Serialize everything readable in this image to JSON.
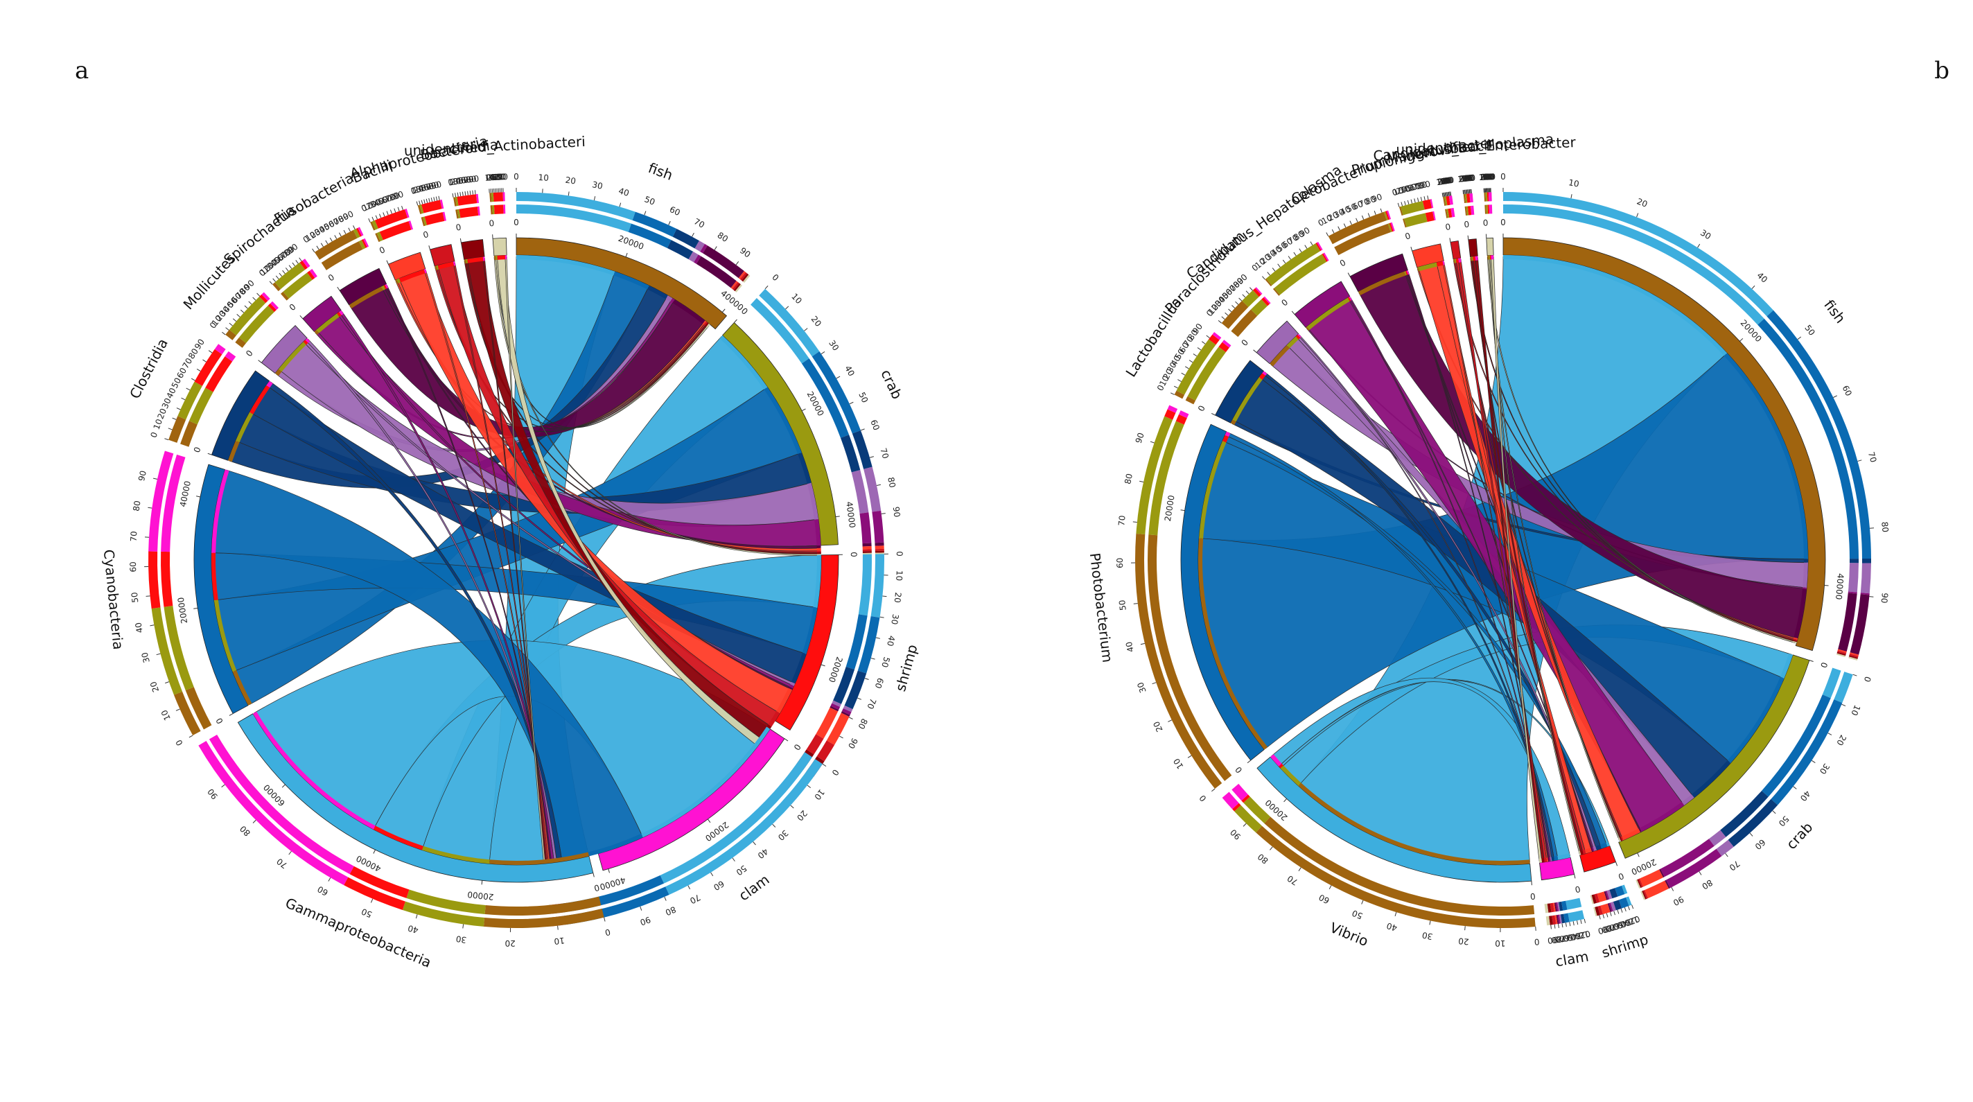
{
  "chart_data": [
    {
      "type": "chord",
      "panel_label": "a",
      "sample_order": [
        "fish",
        "crab",
        "shrimp",
        "clam"
      ],
      "samples": [
        {
          "name": "fish",
          "total": 41000,
          "color": "#a0640f"
        },
        {
          "name": "crab",
          "total": 45000,
          "color": "#9a9a10"
        },
        {
          "name": "shrimp",
          "total": 33000,
          "color": "#ff0d0d"
        },
        {
          "name": "clam",
          "total": 41000,
          "color": "#ff12d2"
        }
      ],
      "taxa": [
        {
          "name": "Gammaproteobacteria",
          "color": "#3daede",
          "values": [
            19000,
            13000,
            10000,
            32000
          ]
        },
        {
          "name": "Cyanobacteria",
          "color": "#0a6ab2",
          "values": [
            7000,
            14000,
            9000,
            16000
          ]
        },
        {
          "name": "Clostridia",
          "color": "#083b7a",
          "values": [
            4000,
            6000,
            6000,
            1000
          ]
        },
        {
          "name": "Mollicutes",
          "color": "#9d68b4",
          "values": [
            1000,
            7000,
            500,
            500
          ]
        },
        {
          "name": "Spirochaetia",
          "color": "#8b0e7a",
          "values": [
            500,
            5000,
            500,
            500
          ]
        },
        {
          "name": "Fusobacteria",
          "color": "#5a0045",
          "values": [
            7000,
            500,
            300,
            300
          ]
        },
        {
          "name": "Bacilli",
          "color": "#ff3c28",
          "values": [
            300,
            500,
            5000,
            300
          ]
        },
        {
          "name": "Alphaproteobacteria",
          "color": "#d2141e",
          "values": [
            300,
            300,
            3000,
            300
          ]
        },
        {
          "name": "Bacteroidia",
          "color": "#8b0008",
          "values": [
            300,
            300,
            3000,
            300
          ]
        },
        {
          "name": "unidentified_Actinobacteri",
          "color": "#d6d3aa",
          "values": [
            300,
            300,
            1500,
            300
          ]
        }
      ],
      "ticks_abs_step": 20000,
      "ticks_pct": [
        0,
        10,
        20,
        30,
        40,
        50,
        60,
        70,
        80,
        90
      ]
    },
    {
      "type": "chord",
      "panel_label": "b",
      "sample_order": [
        "fish",
        "crab",
        "shrimp",
        "clam"
      ],
      "samples": [
        {
          "name": "fish",
          "total": 45000,
          "color": "#a0640f"
        },
        {
          "name": "crab",
          "total": 21000,
          "color": "#9a9a10"
        },
        {
          "name": "shrimp",
          "total": 2500,
          "color": "#ff0d0d"
        },
        {
          "name": "clam",
          "total": 2500,
          "color": "#ff12d2"
        }
      ],
      "taxa": [
        {
          "name": "Vibrio",
          "color": "#3daede",
          "values": [
            20000,
            2000,
            200,
            1000
          ]
        },
        {
          "name": "Photobacterium",
          "color": "#0a6ab2",
          "values": [
            18000,
            8000,
            500,
            300
          ]
        },
        {
          "name": "Lactobacillus",
          "color": "#083b7a",
          "values": [
            300,
            4000,
            400,
            200
          ]
        },
        {
          "name": "Paraclostridium",
          "color": "#9d68b4",
          "values": [
            2000,
            1000,
            200,
            100
          ]
        },
        {
          "name": "Candidatus_Hepatoplasma",
          "color": "#8b0e7a",
          "values": [
            100,
            4000,
            100,
            100
          ]
        },
        {
          "name": "Cetobacterium",
          "color": "#5a0045",
          "values": [
            4000,
            100,
            100,
            100
          ]
        },
        {
          "name": "Propionigenium",
          "color": "#ff3c28",
          "values": [
            100,
            1500,
            500,
            100
          ]
        },
        {
          "name": "Mangrovibacter",
          "color": "#d2141e",
          "values": [
            100,
            100,
            200,
            200
          ]
        },
        {
          "name": "Candidatus_Bacilloplasma",
          "color": "#8b0008",
          "values": [
            100,
            100,
            200,
            200
          ]
        },
        {
          "name": "unidentified_Enterobacter",
          "color": "#d6d3aa",
          "values": [
            100,
            100,
            100,
            200
          ]
        }
      ],
      "ticks_abs_step": 20000,
      "ticks_pct": [
        0,
        10,
        20,
        30,
        40,
        50,
        60,
        70,
        80,
        90
      ]
    }
  ]
}
